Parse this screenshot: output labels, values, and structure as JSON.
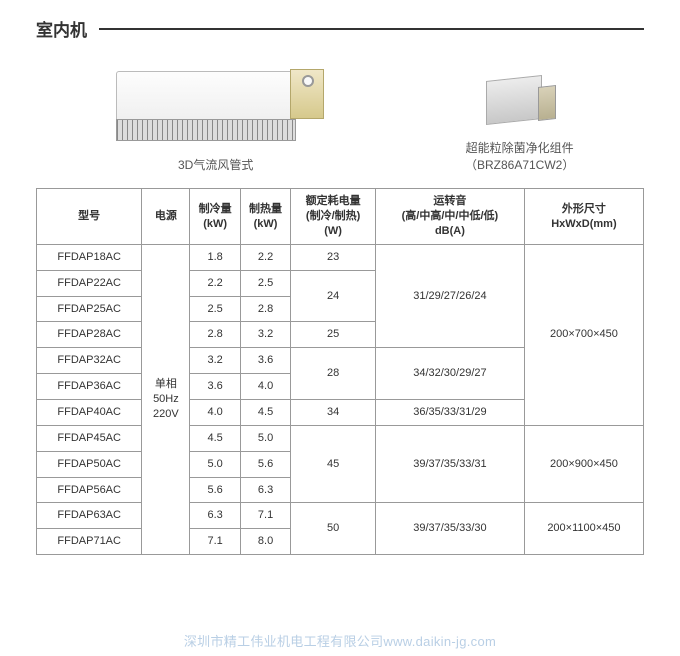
{
  "title": "室内机",
  "images": {
    "duct_caption": "3D气流风管式",
    "filter_caption_l1": "超能粒除菌净化组件",
    "filter_caption_l2": "（BRZ86A71CW2）"
  },
  "table": {
    "headers": {
      "model": "型号",
      "power": "电源",
      "cooling": "制冷量\n(kW)",
      "heating": "制热量\n(kW)",
      "consumption": "额定耗电量\n(制冷/制热)\n(W)",
      "noise": "运转音\n(高/中高/中/中低/低)\ndB(A)",
      "dimension": "外形尺寸\nHxWxD(mm)"
    },
    "power_spec": "单相\n50Hz\n220V",
    "rows": [
      {
        "model": "FFDAP18AC",
        "cool": "1.8",
        "heat": "2.2"
      },
      {
        "model": "FFDAP22AC",
        "cool": "2.2",
        "heat": "2.5"
      },
      {
        "model": "FFDAP25AC",
        "cool": "2.5",
        "heat": "2.8"
      },
      {
        "model": "FFDAP28AC",
        "cool": "2.8",
        "heat": "3.2"
      },
      {
        "model": "FFDAP32AC",
        "cool": "3.2",
        "heat": "3.6"
      },
      {
        "model": "FFDAP36AC",
        "cool": "3.6",
        "heat": "4.0"
      },
      {
        "model": "FFDAP40AC",
        "cool": "4.0",
        "heat": "4.5"
      },
      {
        "model": "FFDAP45AC",
        "cool": "4.5",
        "heat": "5.0"
      },
      {
        "model": "FFDAP50AC",
        "cool": "5.0",
        "heat": "5.6"
      },
      {
        "model": "FFDAP56AC",
        "cool": "5.6",
        "heat": "6.3"
      },
      {
        "model": "FFDAP63AC",
        "cool": "6.3",
        "heat": "7.1"
      },
      {
        "model": "FFDAP71AC",
        "cool": "7.1",
        "heat": "8.0"
      }
    ],
    "consumption_groups": [
      {
        "value": "23",
        "span": 1
      },
      {
        "value": "24",
        "span": 2
      },
      {
        "value": "25",
        "span": 1
      },
      {
        "value": "28",
        "span": 2
      },
      {
        "value": "34",
        "span": 1
      },
      {
        "value": "45",
        "span": 3
      },
      {
        "value": "50",
        "span": 2
      }
    ],
    "noise_groups": [
      {
        "value": "31/29/27/26/24",
        "span": 4
      },
      {
        "value": "34/32/30/29/27",
        "span": 2
      },
      {
        "value": "36/35/33/31/29",
        "span": 1
      },
      {
        "value": "39/37/35/33/31",
        "span": 3
      },
      {
        "value": "39/37/35/33/30",
        "span": 2
      }
    ],
    "dim_groups": [
      {
        "value": "200×700×450",
        "span": 7
      },
      {
        "value": "200×900×450",
        "span": 3
      },
      {
        "value": "200×1100×450",
        "span": 2
      }
    ]
  },
  "watermark": "深圳市精工伟业机电工程有限公司www.daikin-jg.com"
}
